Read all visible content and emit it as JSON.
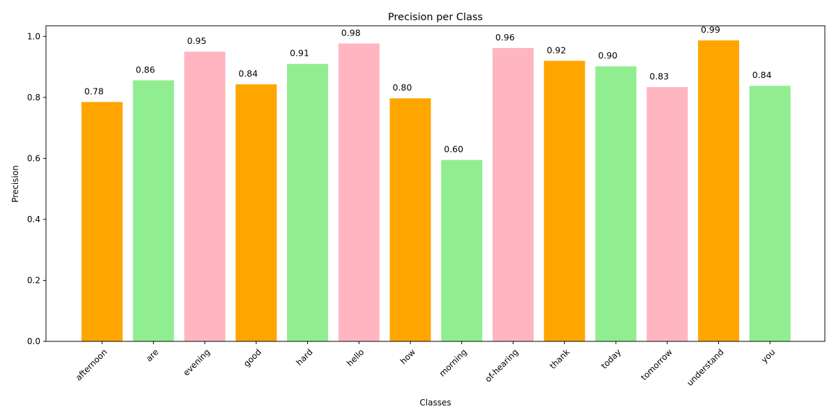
{
  "chart_data": {
    "type": "bar",
    "title": "Precision per Class",
    "xlabel": "Classes",
    "ylabel": "Precision",
    "categories": [
      "afternoon",
      "are",
      "evening",
      "good",
      "hard",
      "hello",
      "how",
      "morning",
      "of-hearing",
      "thank",
      "today",
      "tomorrow",
      "understand",
      "you"
    ],
    "values": [
      0.785,
      0.856,
      0.95,
      0.843,
      0.91,
      0.977,
      0.797,
      0.595,
      0.962,
      0.92,
      0.902,
      0.834,
      0.987,
      0.838
    ],
    "data_labels": [
      "0.78",
      "0.86",
      "0.95",
      "0.84",
      "0.91",
      "0.98",
      "0.80",
      "0.60",
      "0.96",
      "0.92",
      "0.90",
      "0.83",
      "0.99",
      "0.84"
    ],
    "bar_colors": [
      "#FFA500",
      "#90EE90",
      "#FFB6C1",
      "#FFA500",
      "#90EE90",
      "#FFB6C1",
      "#FFA500",
      "#90EE90",
      "#FFB6C1",
      "#FFA500",
      "#90EE90",
      "#FFB6C1",
      "#FFA500",
      "#90EE90"
    ],
    "ylim": [
      0,
      1.035
    ],
    "yticks": [
      0.0,
      0.2,
      0.4,
      0.6,
      0.8,
      1.0
    ],
    "ytick_labels": [
      "0.0",
      "0.2",
      "0.4",
      "0.6",
      "0.8",
      "1.0"
    ],
    "grid": false,
    "legend": "none"
  }
}
